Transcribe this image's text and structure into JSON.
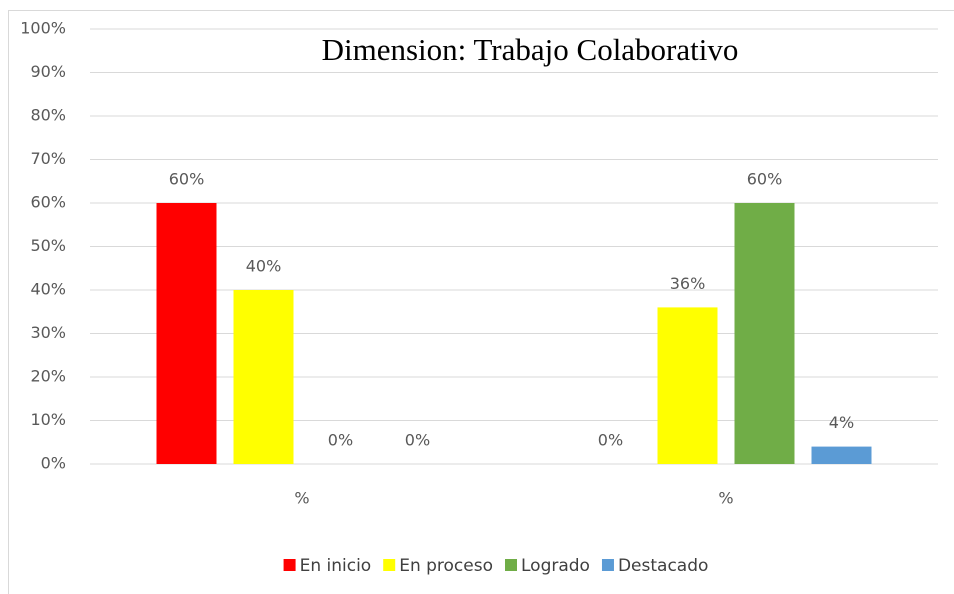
{
  "chart_data": {
    "type": "bar",
    "title": "Dimension: Trabajo Colaborativo",
    "categories": [
      "%",
      "%"
    ],
    "series": [
      {
        "name": "En inicio",
        "color": "#ff0000",
        "values": [
          60,
          0
        ],
        "value_labels": [
          "60%",
          "0%"
        ]
      },
      {
        "name": "En proceso",
        "color": "#ffff00",
        "values": [
          40,
          36
        ],
        "value_labels": [
          "40%",
          "36%"
        ]
      },
      {
        "name": "Logrado",
        "color": "#70ad47",
        "values": [
          0,
          60
        ],
        "value_labels": [
          "0%",
          "60%"
        ]
      },
      {
        "name": "Destacado",
        "color": "#5b9bd5",
        "values": [
          0,
          4
        ],
        "value_labels": [
          "0%",
          "4%"
        ]
      }
    ],
    "ylim": [
      0,
      100
    ],
    "yticks": [
      {
        "value": 0,
        "label": "0%"
      },
      {
        "value": 10,
        "label": "10%"
      },
      {
        "value": 20,
        "label": "20%"
      },
      {
        "value": 30,
        "label": "30%"
      },
      {
        "value": 40,
        "label": "40%"
      },
      {
        "value": 50,
        "label": "50%"
      },
      {
        "value": 60,
        "label": "60%"
      },
      {
        "value": 70,
        "label": "70%"
      },
      {
        "value": 80,
        "label": "80%"
      },
      {
        "value": 90,
        "label": "90%"
      },
      {
        "value": 100,
        "label": "100%"
      }
    ],
    "grid": true,
    "legend": "bottom"
  }
}
